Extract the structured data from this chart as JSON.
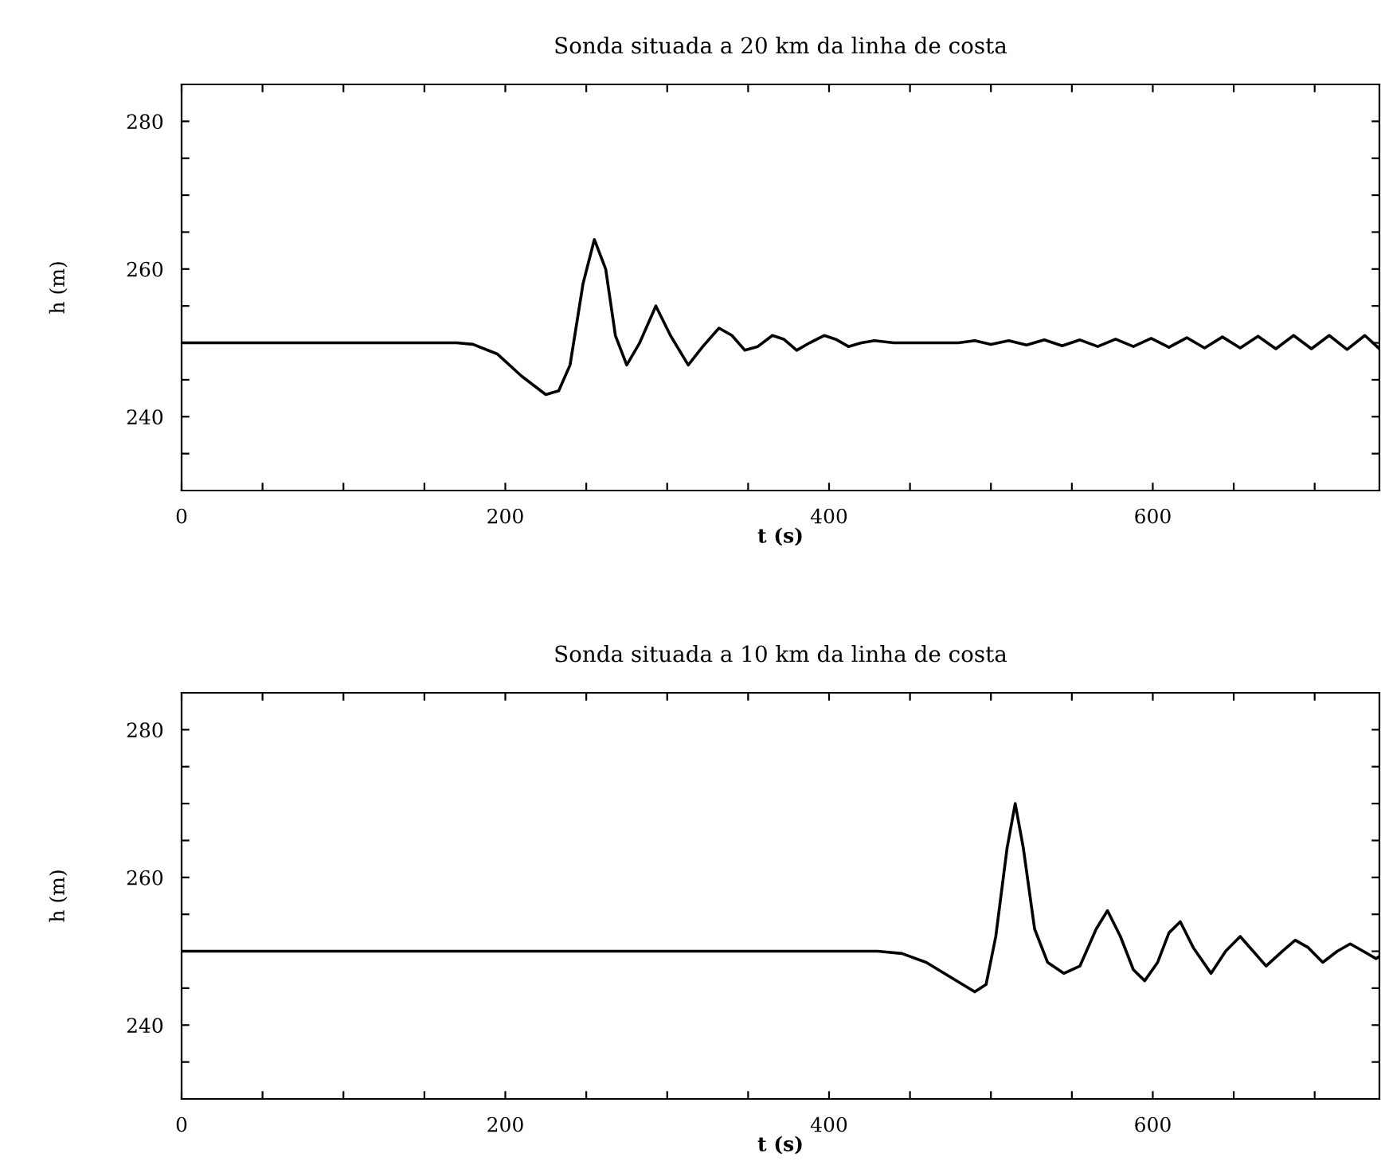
{
  "chart_data": [
    {
      "type": "line",
      "title": "Sonda situada a 20 km da linha de costa",
      "xlabel": "t (s)",
      "ylabel": "h (m)",
      "xlim": [
        0,
        740
      ],
      "ylim": [
        230,
        285
      ],
      "xticks": [
        0,
        {
          "value": 50,
          "label": null
        },
        200,
        {
          "value": 100,
          "label": null
        },
        {
          "value": 150,
          "label": null
        },
        {
          "value": 250,
          "label": null
        },
        {
          "value": 300,
          "label": null
        },
        {
          "value": 350,
          "label": null
        },
        400,
        {
          "value": 450,
          "label": null
        },
        {
          "value": 500,
          "label": null
        },
        {
          "value": 550,
          "label": null
        },
        600,
        {
          "value": 650,
          "label": null
        },
        {
          "value": 700,
          "label": null
        }
      ],
      "yticks": [
        240,
        260,
        280,
        {
          "value": 235,
          "label": null
        },
        {
          "value": 245,
          "label": null
        },
        {
          "value": 250,
          "label": null
        },
        {
          "value": 255,
          "label": null
        },
        {
          "value": 265,
          "label": null
        },
        {
          "value": 270,
          "label": null
        },
        {
          "value": 275,
          "label": null
        }
      ],
      "grid": false,
      "marker": "none",
      "line_style": "solid",
      "series": [
        {
          "color": "#000000",
          "x": [
            0,
            170,
            180,
            195,
            210,
            225,
            233,
            240,
            248,
            255,
            262,
            268,
            275,
            283,
            293,
            302,
            313,
            322,
            332,
            340,
            348,
            356,
            365,
            372,
            380,
            388,
            397,
            404,
            412,
            420,
            428,
            440,
            480,
            490,
            500,
            511,
            522,
            533,
            544,
            555,
            566,
            577,
            588,
            599,
            610,
            621,
            632,
            643,
            654,
            665,
            676,
            687,
            698,
            709,
            720,
            731,
            740
          ],
          "values": [
            250,
            250,
            249.8,
            248.5,
            245.5,
            243,
            243.5,
            247,
            258,
            264,
            260,
            251,
            247,
            250,
            255,
            251,
            247,
            249.5,
            252,
            251,
            249,
            249.5,
            251,
            250.5,
            249,
            250,
            251,
            250.5,
            249.5,
            250,
            250.3,
            250,
            250,
            250.3,
            249.8,
            250.3,
            249.7,
            250.4,
            249.6,
            250.4,
            249.5,
            250.5,
            249.5,
            250.6,
            249.4,
            250.7,
            249.3,
            250.8,
            249.3,
            250.9,
            249.2,
            251,
            249.2,
            251,
            249.1,
            251,
            249.2
          ]
        }
      ]
    },
    {
      "type": "line",
      "title": "Sonda situada a 10 km da linha de costa",
      "xlabel": "t (s)",
      "ylabel": "h (m)",
      "xlim": [
        0,
        740
      ],
      "ylim": [
        230,
        285
      ],
      "xticks": [
        0,
        {
          "value": 50,
          "label": null
        },
        200,
        {
          "value": 100,
          "label": null
        },
        {
          "value": 150,
          "label": null
        },
        {
          "value": 250,
          "label": null
        },
        {
          "value": 300,
          "label": null
        },
        {
          "value": 350,
          "label": null
        },
        400,
        {
          "value": 450,
          "label": null
        },
        {
          "value": 500,
          "label": null
        },
        {
          "value": 550,
          "label": null
        },
        600,
        {
          "value": 650,
          "label": null
        },
        {
          "value": 700,
          "label": null
        }
      ],
      "yticks": [
        240,
        260,
        280,
        {
          "value": 235,
          "label": null
        },
        {
          "value": 245,
          "label": null
        },
        {
          "value": 250,
          "label": null
        },
        {
          "value": 255,
          "label": null
        },
        {
          "value": 265,
          "label": null
        },
        {
          "value": 270,
          "label": null
        },
        {
          "value": 275,
          "label": null
        }
      ],
      "grid": false,
      "marker": "none",
      "line_style": "solid",
      "series": [
        {
          "color": "#000000",
          "x": [
            0,
            430,
            445,
            460,
            475,
            490,
            497,
            503,
            510,
            515,
            520,
            527,
            535,
            545,
            555,
            565,
            572,
            580,
            588,
            595,
            603,
            610,
            617,
            625,
            636,
            645,
            654,
            662,
            670,
            680,
            688,
            696,
            705,
            714,
            722,
            730,
            738,
            740
          ],
          "values": [
            250,
            250,
            249.7,
            248.5,
            246.5,
            244.5,
            245.5,
            252,
            264,
            270,
            264,
            253,
            248.5,
            247,
            248,
            253,
            255.5,
            252,
            247.5,
            246,
            248.5,
            252.5,
            254,
            250.5,
            247,
            250,
            252,
            250,
            248,
            250,
            251.5,
            250.5,
            248.5,
            250,
            251,
            250,
            249,
            249.3
          ]
        }
      ]
    }
  ]
}
